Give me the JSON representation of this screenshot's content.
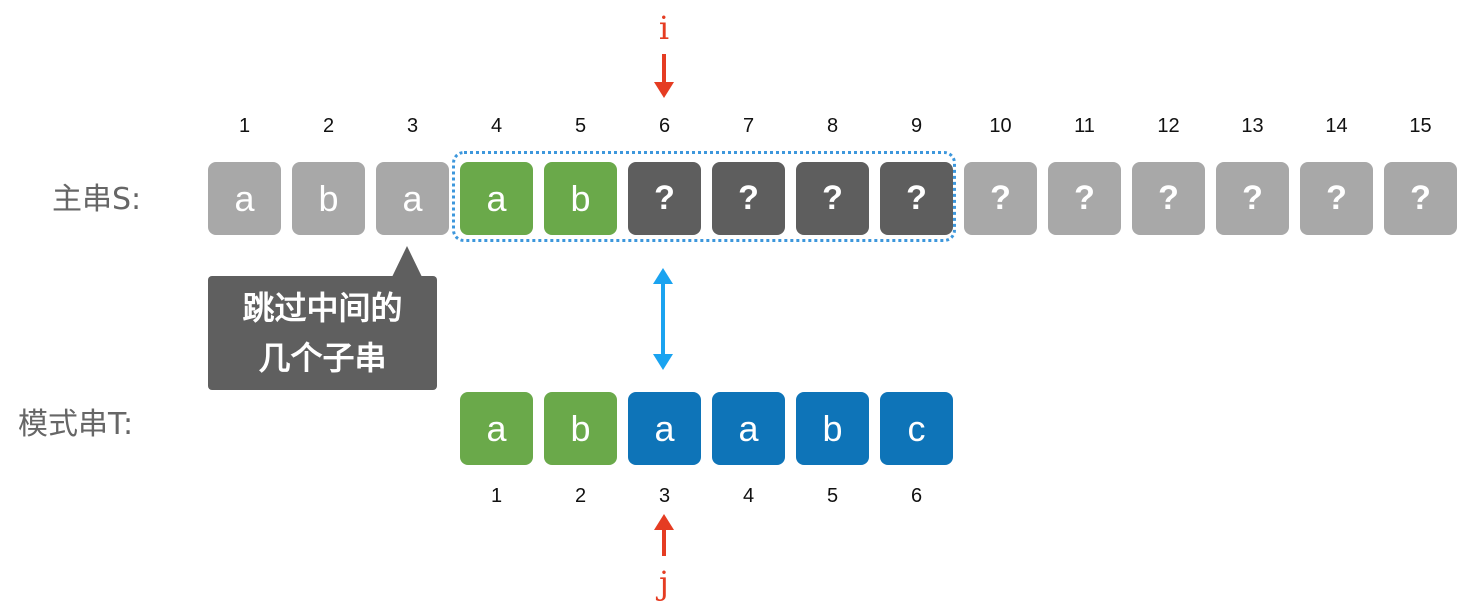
{
  "colors": {
    "light_gray": "#a8a8a8",
    "dark_gray": "#5e5e5e",
    "green": "#6aa94a",
    "blue": "#0e74b8",
    "pointer_red": "#e53c22",
    "match_blue": "#1aa3f0",
    "window_border": "#3d97dc"
  },
  "labels": {
    "main_string": "主串S:",
    "pattern_string": "模式串T:"
  },
  "pointers": {
    "i": "i",
    "j": "j"
  },
  "callout": {
    "line1": "跳过中间的",
    "line2": "几个子串"
  },
  "main": {
    "indices": [
      "1",
      "2",
      "3",
      "4",
      "5",
      "6",
      "7",
      "8",
      "9",
      "10",
      "11",
      "12",
      "13",
      "14",
      "15"
    ],
    "cells": [
      {
        "char": "a",
        "style": "light_gray"
      },
      {
        "char": "b",
        "style": "light_gray"
      },
      {
        "char": "a",
        "style": "light_gray"
      },
      {
        "char": "a",
        "style": "green"
      },
      {
        "char": "b",
        "style": "green"
      },
      {
        "char": "?",
        "style": "dark_gray"
      },
      {
        "char": "?",
        "style": "dark_gray"
      },
      {
        "char": "?",
        "style": "dark_gray"
      },
      {
        "char": "?",
        "style": "dark_gray"
      },
      {
        "char": "?",
        "style": "light_gray"
      },
      {
        "char": "?",
        "style": "light_gray"
      },
      {
        "char": "?",
        "style": "light_gray"
      },
      {
        "char": "?",
        "style": "light_gray"
      },
      {
        "char": "?",
        "style": "light_gray"
      },
      {
        "char": "?",
        "style": "light_gray"
      }
    ]
  },
  "pattern": {
    "indices": [
      "1",
      "2",
      "3",
      "4",
      "5",
      "6"
    ],
    "cells": [
      {
        "char": "a",
        "style": "green"
      },
      {
        "char": "b",
        "style": "green"
      },
      {
        "char": "a",
        "style": "blue"
      },
      {
        "char": "a",
        "style": "blue"
      },
      {
        "char": "b",
        "style": "blue"
      },
      {
        "char": "c",
        "style": "blue"
      }
    ]
  }
}
